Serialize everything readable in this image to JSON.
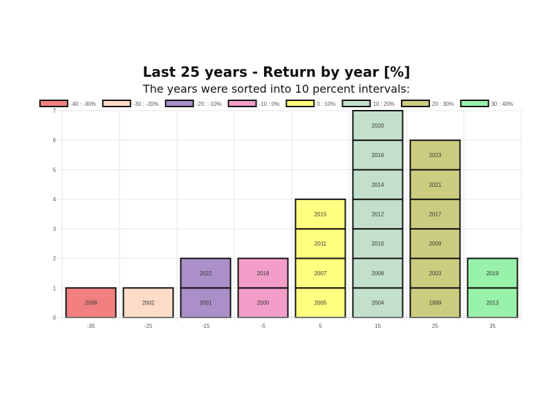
{
  "chart_data": {
    "type": "bar",
    "title": "Last 25 years - Return by year [%]",
    "subtitle": "The years were sorted into 10 percent intervals:",
    "categories": [
      "-35",
      "-25",
      "-15",
      "-5",
      "5",
      "15",
      "25",
      "35"
    ],
    "ylim": [
      0,
      7
    ],
    "yticks": [
      "0",
      "1",
      "2",
      "3",
      "4",
      "5",
      "6",
      "7"
    ],
    "grid": true,
    "legend_position": "top",
    "series": [
      {
        "name": "-40 : -30%",
        "color": "#f28080",
        "values": [
          1,
          0,
          0,
          0,
          0,
          0,
          0,
          0
        ],
        "labels": [
          "2008",
          "",
          "",
          "",
          "",
          "",
          "",
          ""
        ]
      },
      {
        "name": "-30 : -20%",
        "color": "#fddcc8",
        "values": [
          0,
          1,
          0,
          0,
          0,
          0,
          0,
          0
        ],
        "labels": [
          "",
          "2002",
          "",
          "",
          "",
          "",
          "",
          ""
        ]
      },
      {
        "name": "-20 : -10%",
        "color": "#ab8fc8",
        "values": [
          0,
          0,
          2,
          0,
          0,
          0,
          0,
          0
        ],
        "stack_labels": [
          [],
          [],
          [
            "2001",
            "2022"
          ],
          [],
          [],
          [],
          [],
          []
        ]
      },
      {
        "name": "-10 : 0%",
        "color": "#f29ec8",
        "values": [
          0,
          0,
          0,
          2,
          0,
          0,
          0,
          0
        ],
        "stack_labels": [
          [],
          [],
          [],
          [
            "2000",
            "2018"
          ],
          [],
          [],
          [],
          []
        ]
      },
      {
        "name": "0 : 10%",
        "color": "#ffff80",
        "values": [
          0,
          0,
          0,
          0,
          4,
          0,
          0,
          0
        ],
        "stack_labels": [
          [],
          [],
          [],
          [],
          [
            "2005",
            "2007",
            "2011",
            "2015"
          ],
          [],
          [],
          []
        ]
      },
      {
        "name": "10 : 20%",
        "color": "#c2e0cc",
        "values": [
          0,
          0,
          0,
          0,
          0,
          7,
          0,
          0
        ],
        "stack_labels": [
          [],
          [],
          [],
          [],
          [],
          [
            "2004",
            "2006",
            "2010",
            "2012",
            "2014",
            "2016",
            "2020"
          ],
          [],
          []
        ]
      },
      {
        "name": "20 : 30%",
        "color": "#cccc80",
        "values": [
          0,
          0,
          0,
          0,
          0,
          0,
          6,
          0
        ],
        "stack_labels": [
          [],
          [],
          [],
          [],
          [],
          [],
          [
            "1999",
            "2003",
            "2009",
            "2017",
            "2021",
            "2023"
          ],
          []
        ]
      },
      {
        "name": "30 : 40%",
        "color": "#99f2aa",
        "values": [
          0,
          0,
          0,
          0,
          0,
          0,
          0,
          2
        ],
        "stack_labels": [
          [],
          [],
          [],
          [],
          [],
          [],
          [],
          [
            "2013",
            "2019"
          ]
        ]
      }
    ]
  }
}
